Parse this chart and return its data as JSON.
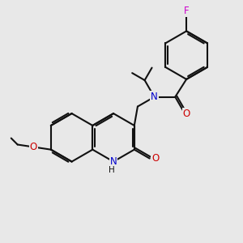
{
  "bg": "#e8e8e8",
  "bc": "#111111",
  "NC": "#0000cc",
  "OC": "#cc0000",
  "FC": "#cc00cc",
  "lw": 1.5,
  "dbl_off": 2.3,
  "fs": 8.5,
  "dpi": 100,
  "figsize": [
    3.0,
    3.0
  ],
  "xlim": [
    0,
    300
  ],
  "ylim": [
    0,
    300
  ]
}
